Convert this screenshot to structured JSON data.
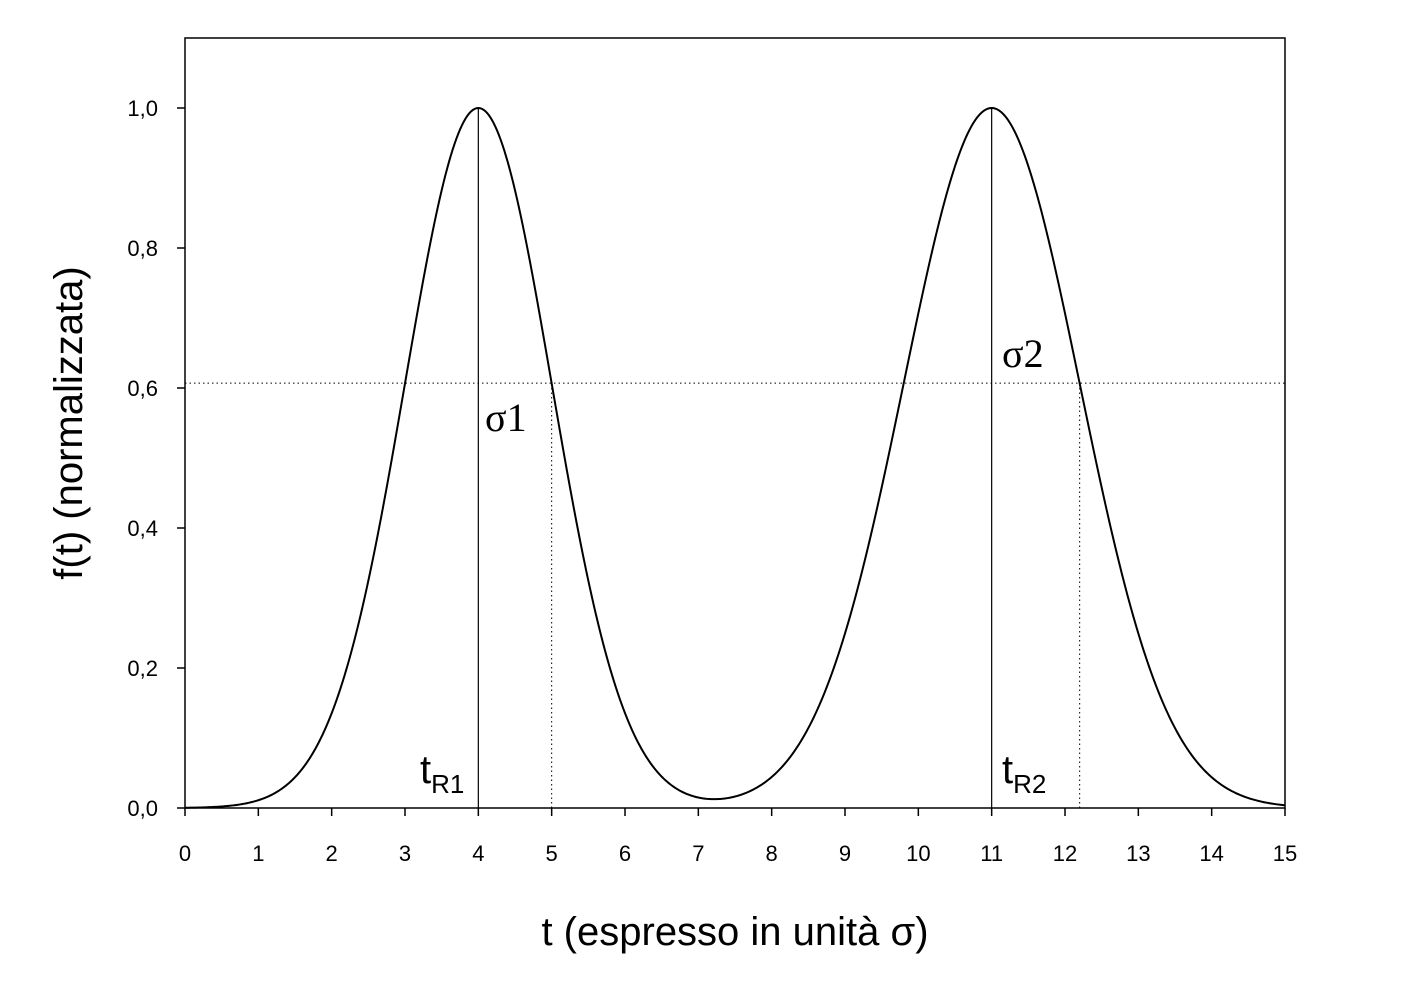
{
  "chart_data": {
    "type": "line",
    "title": "",
    "xlabel": "t (espresso in unità σ)",
    "ylabel": "f(t) (normalizzata)",
    "xlim": [
      0,
      15
    ],
    "ylim": [
      0,
      1.1
    ],
    "xticks": [
      0,
      1,
      2,
      3,
      4,
      5,
      6,
      7,
      8,
      9,
      10,
      11,
      12,
      13,
      14,
      15
    ],
    "xtick_labels": [
      "0",
      "1",
      "2",
      "3",
      "4",
      "5",
      "6",
      "7",
      "8",
      "9",
      "10",
      "11",
      "12",
      "13",
      "14",
      "15"
    ],
    "yticks": [
      0,
      0.2,
      0.4,
      0.6,
      0.8,
      1.0
    ],
    "ytick_labels": [
      "0,0",
      "0,2",
      "0,4",
      "0,6",
      "0,8",
      "1,0"
    ],
    "grid": false,
    "peaks": [
      {
        "center": 4,
        "sigma": 1,
        "height": 1.0
      },
      {
        "center": 11,
        "sigma": 1.2,
        "height": 1.0
      }
    ],
    "series": [
      {
        "x": [
          0,
          0.5,
          1,
          1.5,
          2,
          2.5,
          3,
          3.5,
          4,
          4.5,
          5,
          5.5,
          6,
          6.5,
          7,
          7.5,
          8,
          8.5,
          9,
          9.5,
          10,
          10.5,
          11,
          11.5,
          12,
          12.5,
          13,
          13.5,
          14,
          14.5,
          15
        ],
        "values": [
          0.0,
          0.002,
          0.011,
          0.044,
          0.135,
          0.325,
          0.607,
          0.883,
          1.0,
          0.883,
          0.607,
          0.325,
          0.136,
          0.046,
          0.015,
          0.015,
          0.049,
          0.141,
          0.327,
          0.58,
          0.708,
          0.917,
          1.0,
          0.917,
          0.708,
          0.475,
          0.249,
          0.121,
          0.039,
          0.014,
          0.004
        ]
      }
    ],
    "reference_lines": {
      "horizontal_dotted_y": 0.607,
      "peak_verticals_x": [
        4,
        11
      ],
      "sigma_dotted_verticals_x": [
        5,
        12.2
      ]
    },
    "annotations": {
      "sigma1": "σ1",
      "sigma2": "σ2",
      "tR1_main": "t",
      "tR1_sub": "R1",
      "tR2_main": "t",
      "tR2_sub": "R2"
    }
  }
}
